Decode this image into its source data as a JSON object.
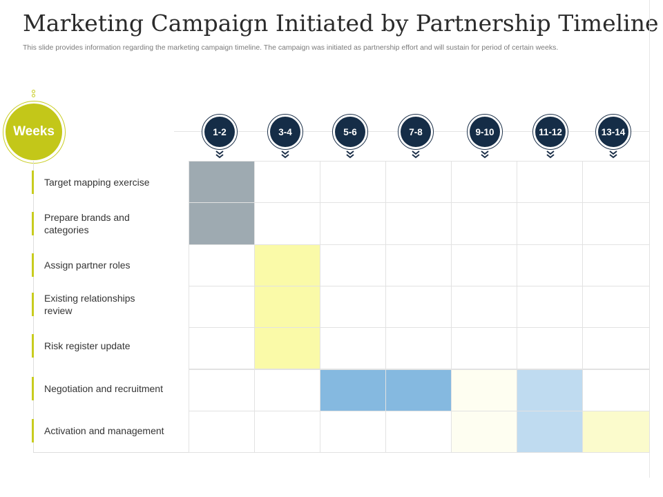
{
  "title": "Marketing Campaign Initiated by Partnership Timeline",
  "subtitle": "This slide provides information regarding the marketing campaign timeline. The campaign was initiated as partnership effort and will sustain for period of certain weeks.",
  "weeks_label": "Weeks",
  "weeks": [
    "1-2",
    "3-4",
    "5-6",
    "7-8",
    "9-10",
    "11-12",
    "13-14"
  ],
  "tasks": [
    {
      "label": "Target mapping exercise"
    },
    {
      "label": "Prepare brands and categories"
    },
    {
      "label": "Assign partner roles"
    },
    {
      "label": "Existing relationships review"
    },
    {
      "label": "Risk register update"
    },
    {
      "label": "Negotiation and recruitment"
    },
    {
      "label": "Activation and management"
    }
  ],
  "timeline_cells": [
    {
      "task": 0,
      "week": 0,
      "color": "#9eaab1"
    },
    {
      "task": 1,
      "week": 0,
      "color": "#9eaab1"
    },
    {
      "task": 2,
      "week": 1,
      "color": "#fafaa8"
    },
    {
      "task": 3,
      "week": 1,
      "color": "#fafaa8"
    },
    {
      "task": 4,
      "week": 1,
      "color": "#fafaa8"
    },
    {
      "task": 5,
      "week": 2,
      "color": "#85b9e0"
    },
    {
      "task": 5,
      "week": 3,
      "color": "#85b9e0"
    },
    {
      "task": 5,
      "week": 4,
      "color": "#fefef1"
    },
    {
      "task": 5,
      "week": 5,
      "color": "#bfdbf0"
    },
    {
      "task": 6,
      "week": 4,
      "color": "#fefef1"
    },
    {
      "task": 6,
      "week": 5,
      "color": "#bfdbf0"
    },
    {
      "task": 6,
      "week": 6,
      "color": "#fbfbcc"
    }
  ],
  "colors": {
    "accent_lime": "#c3c719",
    "navy": "#152d47",
    "gray": "#9eaab1",
    "yellow": "#fafaa8",
    "blue": "#85b9e0",
    "light_yellow": "#fefef1",
    "light_blue": "#bfdbf0",
    "pale_yellow": "#fbfbcc"
  }
}
